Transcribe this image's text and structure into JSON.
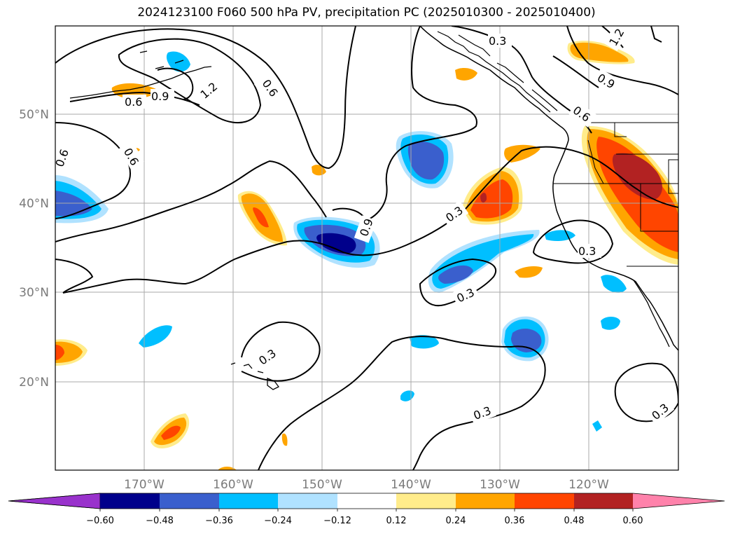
{
  "title": "2024123100 F060 500 hPa PV, precipitation PC (2025010300 - 2025010400)",
  "latitude_labels": [
    "50°N",
    "40°N",
    "30°N",
    "20°N"
  ],
  "longitude_labels": [
    "170°W",
    "160°W",
    "150°W",
    "140°W",
    "130°W",
    "120°W"
  ],
  "contour_labels": [
    "0.3",
    "0.6",
    "0.9",
    "1.2"
  ],
  "colorbar": {
    "ticks": [
      "−0.60",
      "−0.48",
      "−0.36",
      "−0.24",
      "−0.12",
      "0.12",
      "0.24",
      "0.36",
      "0.48",
      "0.60"
    ],
    "colors": [
      "#9932cc",
      "#00008b",
      "#3a5fcd",
      "#00bfff",
      "#b0e2ff",
      "#ffffff",
      "#ffec8b",
      "#ffa500",
      "#ff4500",
      "#b22222",
      "#ff82ab"
    ]
  },
  "colors": {
    "blue_dark": "#00008b",
    "blue_mid": "#3a5fcd",
    "blue_light": "#00bfff",
    "blue_pale": "#b0e2ff",
    "yellow": "#ffec8b",
    "orange": "#ffa500",
    "red": "#ff4500",
    "dark_red": "#b22222"
  }
}
